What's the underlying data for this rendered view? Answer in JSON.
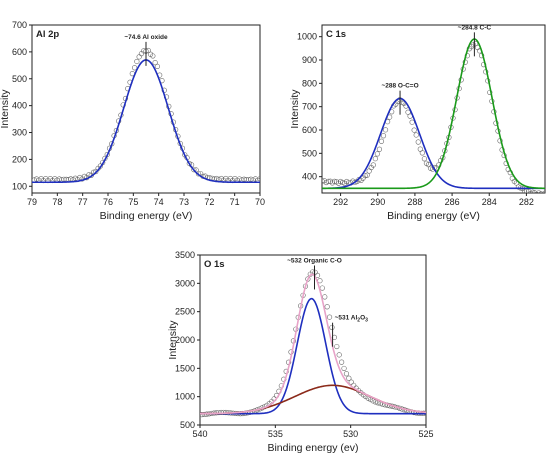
{
  "chart_data": [
    {
      "type": "line",
      "title": "Al 2p",
      "xlabel": "Binding energy (eV)",
      "ylabel": "Intensity",
      "xlim": [
        79,
        70
      ],
      "ylim": [
        75,
        700
      ],
      "x_reversed": true,
      "xticks": [
        79,
        78,
        77,
        76,
        75,
        74,
        73,
        72,
        71,
        70
      ],
      "yticks": [
        100,
        200,
        300,
        400,
        500,
        600,
        700
      ],
      "annotations": [
        {
          "text": "~74.6 Al oxide",
          "x": 74.5,
          "y": 630
        }
      ],
      "series": [
        {
          "role": "experimental",
          "marker": "open-circle",
          "color": "#666666",
          "peaks": [
            {
              "center": 74.5,
              "amplitude": 480,
              "sigma": 0.85
            }
          ],
          "baseline": 125,
          "x_step": 0.09
        },
        {
          "role": "fit",
          "color": "#1f2fbf",
          "peaks": [
            {
              "center": 74.5,
              "amplitude": 455,
              "sigma": 0.88
            }
          ],
          "baseline": 115
        }
      ]
    },
    {
      "type": "line",
      "title": "C 1s",
      "xlabel": "Binding energy (eV)",
      "ylabel": "Intensity",
      "xlim": [
        293,
        281
      ],
      "ylim": [
        330,
        1050
      ],
      "x_reversed": true,
      "xticks": [
        292,
        290,
        288,
        286,
        284,
        282
      ],
      "yticks": [
        400,
        500,
        600,
        700,
        800,
        900,
        1000
      ],
      "annotations": [
        {
          "text": "~288 O-C=O",
          "x": 288.8,
          "y": 760
        },
        {
          "text": "~284.8 C-C",
          "x": 284.8,
          "y": 1010
        }
      ],
      "series": [
        {
          "role": "experimental",
          "marker": "open-circle",
          "color": "#666666",
          "peaks": [
            {
              "center": 288.8,
              "amplitude": 365,
              "sigma": 0.85
            },
            {
              "center": 284.8,
              "amplitude": 625,
              "sigma": 0.95
            }
          ],
          "baseline": 380,
          "baseline_right": 325,
          "x_step": 0.11
        },
        {
          "role": "fit",
          "color": "#1f2fbf",
          "peaks": [
            {
              "center": 288.8,
              "amplitude": 385,
              "sigma": 1.05
            }
          ],
          "baseline": 350
        },
        {
          "role": "fit",
          "color": "#1a9a1a",
          "peaks": [
            {
              "center": 284.8,
              "amplitude": 640,
              "sigma": 0.95
            }
          ],
          "baseline": 350
        }
      ]
    },
    {
      "type": "line",
      "title": "O 1s",
      "xlabel": "Binding energy (ev)",
      "ylabel": "Intensity",
      "xlim": [
        540,
        525
      ],
      "ylim": [
        500,
        3500
      ],
      "x_reversed": true,
      "xticks": [
        540,
        535,
        530,
        525
      ],
      "yticks": [
        500,
        1000,
        1500,
        2000,
        2500,
        3000,
        3500
      ],
      "annotations": [
        {
          "text": "~532 Organic C-O",
          "x": 532.4,
          "y": 3280
        },
        {
          "text": "~531 Al",
          "sub": "2",
          "mid": "O",
          "sub2": "3",
          "x": 531.2,
          "y": 2270
        }
      ],
      "series": [
        {
          "role": "experimental",
          "marker": "open-circle",
          "color": "#777777",
          "peaks": [
            {
              "center": 532.5,
              "amplitude": 2100,
              "sigma": 1.1
            },
            {
              "center": 531.2,
              "amplitude": 450,
              "sigma": 2.4
            }
          ],
          "baseline": 700,
          "x_step": 0.16
        },
        {
          "role": "fit",
          "color": "#1f2fbf",
          "peaks": [
            {
              "center": 532.6,
              "amplitude": 2030,
              "sigma": 0.95
            }
          ],
          "baseline": 700
        },
        {
          "role": "fit",
          "color": "#8b2a1a",
          "peaks": [
            {
              "center": 531.2,
              "amplitude": 500,
              "sigma": 2.5
            }
          ],
          "baseline": 700
        },
        {
          "role": "envelope",
          "color": "#e8a3c8",
          "peaks": [
            {
              "center": 532.6,
              "amplitude": 2030,
              "sigma": 0.95
            },
            {
              "center": 531.2,
              "amplitude": 500,
              "sigma": 2.5
            }
          ],
          "baseline": 700
        }
      ]
    }
  ]
}
